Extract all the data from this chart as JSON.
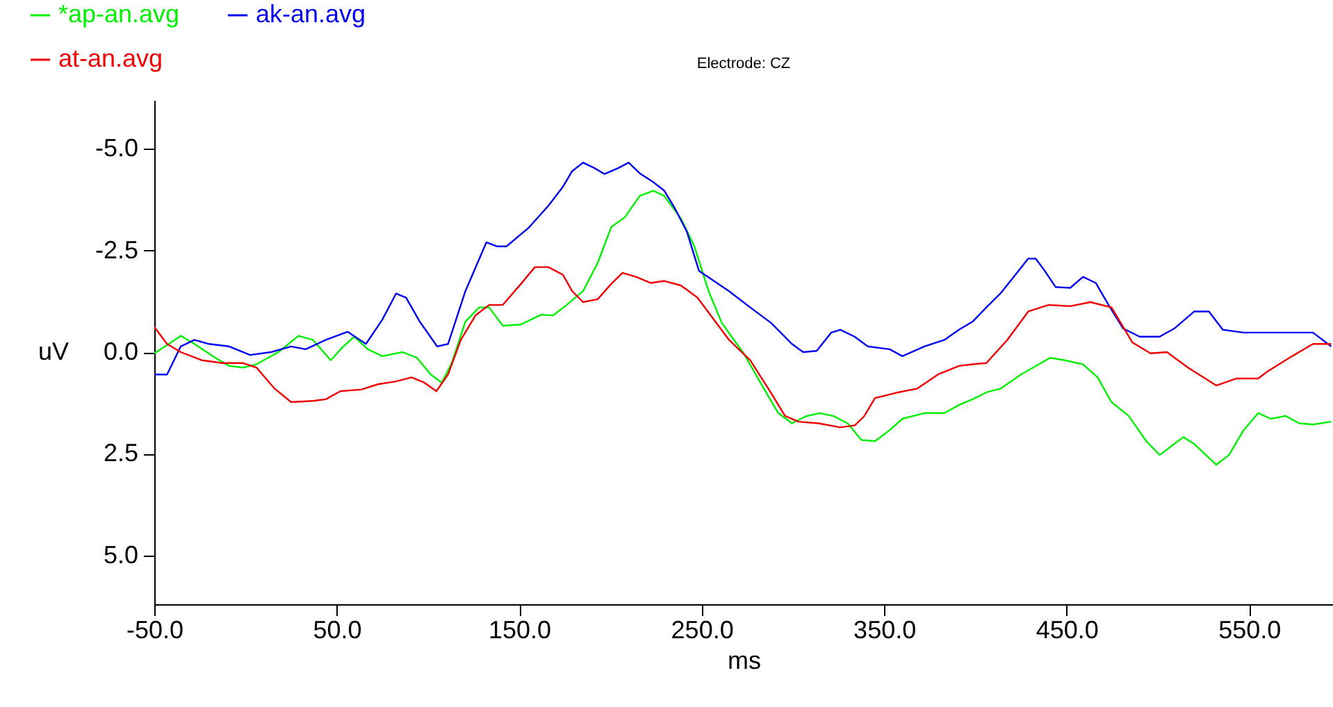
{
  "chart_data": {
    "type": "line",
    "title": "Electrode: CZ",
    "xlabel": "ms",
    "ylabel": "uV",
    "xlim": [
      -50,
      596
    ],
    "ylim": [
      6.2,
      -6.2
    ],
    "xticks": [
      {
        "value": -50,
        "label": "-50.0"
      },
      {
        "value": 50,
        "label": "50.0"
      },
      {
        "value": 150,
        "label": "150.0"
      },
      {
        "value": 250,
        "label": "250.0"
      },
      {
        "value": 350,
        "label": "350.0"
      },
      {
        "value": 450,
        "label": "450.0"
      },
      {
        "value": 550,
        "label": "550.0"
      }
    ],
    "yticks": [
      {
        "value": -5,
        "label": "-5.0"
      },
      {
        "value": -2.5,
        "label": "-2.5"
      },
      {
        "value": 0,
        "label": "0.0"
      },
      {
        "value": 2.5,
        "label": "2.5"
      },
      {
        "value": 5,
        "label": "5.0"
      }
    ],
    "legend": "top left",
    "series": [
      {
        "name": "*ap-an.avg",
        "color": "#00ee00",
        "x": [
          -50,
          -43,
          -35.5,
          -28,
          -16.5,
          -9,
          -1.3,
          6,
          18,
          29,
          37,
          46.7,
          53.6,
          59.6,
          67,
          75,
          86,
          94,
          101.5,
          107.6,
          113,
          120.5,
          128,
          133.5,
          141,
          151,
          162,
          168.5,
          176,
          185,
          193,
          200.5,
          208,
          216,
          223.5,
          229.5,
          238.6,
          246,
          253.8,
          261,
          273,
          284,
          292,
          299.5,
          307,
          314.6,
          322,
          330,
          337.5,
          345,
          353,
          360,
          372,
          383,
          391,
          398.5,
          406,
          413.7,
          425,
          436,
          441,
          449,
          459,
          467,
          474.6,
          484,
          493.7,
          501,
          509,
          514,
          520,
          532,
          539,
          547,
          555,
          562,
          570,
          577.5,
          585,
          595
        ],
        "values": [
          0.03,
          -0.17,
          -0.4,
          -0.2,
          0.14,
          0.34,
          0.38,
          0.3,
          0,
          -0.4,
          -0.3,
          0.2,
          -0.14,
          -0.38,
          -0.07,
          0.1,
          0,
          0.14,
          0.55,
          0.75,
          0.27,
          -0.75,
          -1.1,
          -1.1,
          -0.65,
          -0.68,
          -0.92,
          -0.9,
          -1.16,
          -1.5,
          -2.19,
          -3.08,
          -3.32,
          -3.84,
          -3.97,
          -3.84,
          -3.29,
          -2.6,
          -1.5,
          -0.72,
          0.03,
          0.89,
          1.5,
          1.75,
          1.58,
          1.5,
          1.57,
          1.75,
          2.16,
          2.19,
          1.92,
          1.64,
          1.5,
          1.5,
          1.3,
          1.16,
          0.99,
          0.9,
          0.55,
          0.27,
          0.14,
          0.2,
          0.3,
          0.62,
          1.23,
          1.57,
          2.19,
          2.53,
          2.26,
          2.09,
          2.26,
          2.77,
          2.53,
          1.92,
          1.5,
          1.64,
          1.57,
          1.75,
          1.78,
          1.71
        ]
      },
      {
        "name": "ak-an.avg",
        "color": "#0000ee",
        "x": [
          -50,
          -43,
          -35.5,
          -28,
          -20,
          -9,
          2.5,
          14,
          25,
          33,
          44,
          56,
          66,
          75,
          82.5,
          88,
          95.5,
          105,
          111,
          120.5,
          132,
          138,
          143,
          155,
          166,
          174,
          179,
          185,
          191.5,
          196.7,
          204,
          210,
          216,
          223.5,
          229.5,
          235,
          242,
          248.5,
          255,
          265,
          276.6,
          288,
          299.5,
          305.6,
          313,
          321,
          326,
          333.8,
          341,
          353,
          360,
          372,
          383,
          391,
          398.5,
          406,
          413.7,
          421,
          429,
          433,
          438,
          444,
          452,
          459,
          466,
          473,
          481,
          490,
          501,
          509,
          520,
          528,
          535.6,
          547,
          558,
          570,
          585,
          595
        ],
        "values": [
          0.55,
          0.55,
          -0.14,
          -0.3,
          -0.2,
          -0.14,
          0.07,
          0,
          -0.14,
          -0.07,
          -0.3,
          -0.5,
          -0.2,
          -0.8,
          -1.44,
          -1.34,
          -0.75,
          -0.14,
          -0.2,
          -1.5,
          -2.7,
          -2.6,
          -2.6,
          -3.05,
          -3.6,
          -4.07,
          -4.45,
          -4.66,
          -4.52,
          -4.38,
          -4.52,
          -4.66,
          -4.4,
          -4.18,
          -3.97,
          -3.56,
          -2.95,
          -2.0,
          -1.8,
          -1.5,
          -1.1,
          -0.72,
          -0.2,
          0,
          -0.03,
          -0.48,
          -0.55,
          -0.38,
          -0.14,
          -0.07,
          0.1,
          -0.14,
          -0.3,
          -0.55,
          -0.75,
          -1.1,
          -1.44,
          -1.85,
          -2.3,
          -2.3,
          -2.0,
          -1.6,
          -1.58,
          -1.85,
          -1.7,
          -1.16,
          -0.58,
          -0.38,
          -0.38,
          -0.58,
          -1.0,
          -1.0,
          -0.55,
          -0.48,
          -0.48,
          -0.48,
          -0.48,
          -0.14
        ]
      },
      {
        "name": "at-an.avg",
        "color": "#ee0000",
        "x": [
          -50,
          -43,
          -35.5,
          -24,
          -12.7,
          -1.3,
          6,
          16,
          25,
          37,
          44,
          52,
          63.5,
          72.6,
          82.5,
          91,
          98,
          104.6,
          111,
          118,
          126,
          133.5,
          141,
          151,
          158.6,
          166,
          174,
          179,
          185,
          193,
          200.5,
          206.6,
          214,
          222,
          229.5,
          238.6,
          247.7,
          255,
          265,
          276.6,
          288,
          295.7,
          303,
          314,
          326,
          334,
          339,
          345,
          356.6,
          368,
          379.5,
          391,
          398.5,
          406,
          417.5,
          429,
          440,
          452,
          463,
          474.6,
          486,
          496,
          505,
          516.5,
          532,
          543,
          555,
          560,
          573.6,
          585,
          595
        ],
        "values": [
          -0.62,
          -0.2,
          0,
          0.2,
          0.27,
          0.27,
          0.38,
          0.9,
          1.23,
          1.2,
          1.16,
          0.96,
          0.92,
          0.79,
          0.72,
          0.62,
          0.75,
          0.96,
          0.55,
          -0.3,
          -0.9,
          -1.16,
          -1.16,
          -1.68,
          -2.09,
          -2.09,
          -1.9,
          -1.5,
          -1.23,
          -1.3,
          -1.68,
          -1.95,
          -1.85,
          -1.7,
          -1.75,
          -1.64,
          -1.34,
          -0.9,
          -0.3,
          0.2,
          1.0,
          1.57,
          1.71,
          1.75,
          1.85,
          1.8,
          1.58,
          1.13,
          1.0,
          0.9,
          0.55,
          0.34,
          0.3,
          0.27,
          -0.3,
          -1.0,
          -1.16,
          -1.13,
          -1.23,
          -1.1,
          -0.24,
          0.03,
          0,
          0.38,
          0.82,
          0.65,
          0.65,
          0.48,
          0.1,
          -0.2,
          -0.2
        ]
      }
    ]
  }
}
